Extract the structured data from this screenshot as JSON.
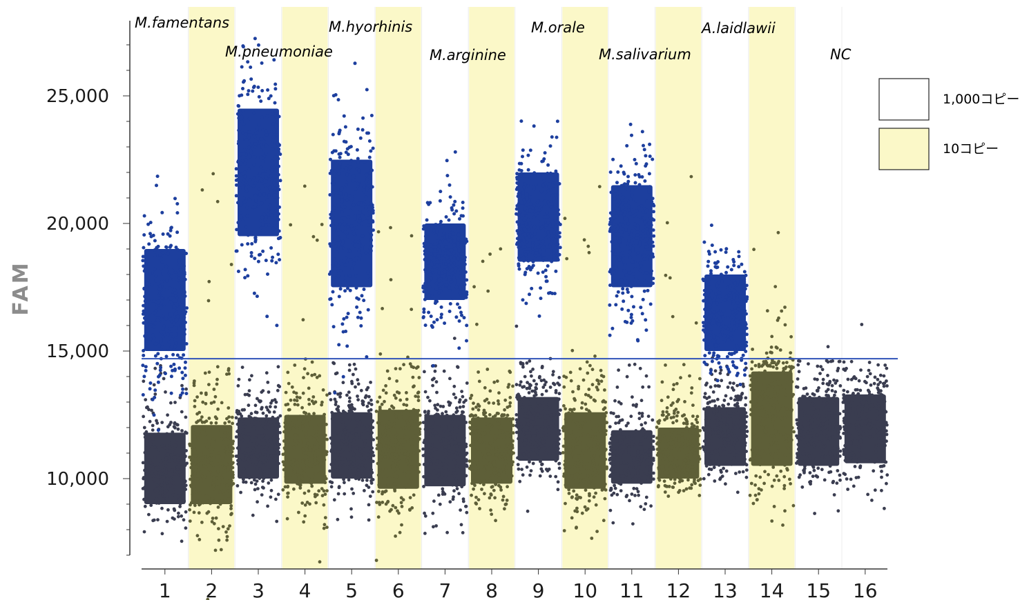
{
  "chart_data": {
    "type": "scatter",
    "ylabel": "FAM",
    "xlabel": "",
    "ylim": [
      7500,
      28000
    ],
    "yticks": [
      10000,
      15000,
      20000,
      25000
    ],
    "ytick_labels": [
      "10,000",
      "15,000",
      "20,000",
      "25,000"
    ],
    "grid": false,
    "threshold": 14700,
    "categories": [
      "1",
      "2",
      "3",
      "4",
      "5",
      "6",
      "7",
      "8",
      "9",
      "10",
      "11",
      "12",
      "13",
      "14",
      "15",
      "16"
    ],
    "wells": [
      {
        "well": "1",
        "concentration": "1,000コピー",
        "positive": [
          15000,
          19000,
          16700
        ],
        "negative": [
          9000,
          11800,
          10400
        ]
      },
      {
        "well": "2",
        "concentration": "10コピー",
        "positive": null,
        "negative": [
          9000,
          12100,
          10500
        ]
      },
      {
        "well": "3",
        "concentration": "1,000コピー",
        "positive": [
          19500,
          24500,
          22000
        ],
        "negative": [
          10000,
          12400,
          11200
        ]
      },
      {
        "well": "4",
        "concentration": "10コピー",
        "positive": null,
        "negative": [
          9800,
          12500,
          11000
        ]
      },
      {
        "well": "5",
        "concentration": "1,000コピー",
        "positive": [
          17500,
          22500,
          20000
        ],
        "negative": [
          10000,
          12600,
          11300
        ]
      },
      {
        "well": "6",
        "concentration": "10コピー",
        "positive": null,
        "negative": [
          9600,
          12700,
          11200
        ]
      },
      {
        "well": "7",
        "concentration": "1,000コピー",
        "positive": [
          17000,
          20000,
          18500
        ],
        "negative": [
          9700,
          12500,
          11000
        ]
      },
      {
        "well": "8",
        "concentration": "10コピー",
        "positive": null,
        "negative": [
          9800,
          12400,
          11000
        ]
      },
      {
        "well": "9",
        "concentration": "1,000コピー",
        "positive": [
          18500,
          22000,
          20200
        ],
        "negative": [
          10700,
          13200,
          12000
        ]
      },
      {
        "well": "10",
        "concentration": "10コピー",
        "positive": null,
        "negative": [
          9600,
          12600,
          11000
        ]
      },
      {
        "well": "11",
        "concentration": "1,000コピー",
        "positive": [
          17500,
          21500,
          19500
        ],
        "negative": [
          9800,
          11900,
          10700
        ]
      },
      {
        "well": "12",
        "concentration": "10コピー",
        "positive": null,
        "negative": [
          10000,
          12000,
          11000
        ]
      },
      {
        "well": "13",
        "concentration": "1,000コピー",
        "positive": [
          15000,
          18000,
          16500
        ],
        "negative": [
          10500,
          12800,
          11800
        ]
      },
      {
        "well": "14",
        "concentration": "10コピー",
        "positive": null,
        "negative": [
          10500,
          14200,
          12300
        ]
      },
      {
        "well": "15",
        "concentration": "",
        "positive": null,
        "negative": [
          10500,
          13200,
          11800
        ]
      },
      {
        "well": "16",
        "concentration": "",
        "positive": null,
        "negative": [
          10600,
          13300,
          12000
        ]
      }
    ],
    "series": [
      {
        "name": "",
        "color": "#1d3f9e"
      },
      {
        "name": "",
        "color": "#3a3d50"
      },
      {
        "name": "",
        "color": "#5e5f38"
      }
    ],
    "annotations": [
      {
        "text": "M.famentans",
        "wells": "1-2"
      },
      {
        "text": "M.pneumoniae",
        "wells": "3-4"
      },
      {
        "text": "M.hyorhinis",
        "wells": "5-6"
      },
      {
        "text": "M.arginine",
        "wells": "7-8"
      },
      {
        "text": "M.orale",
        "wells": "9-10"
      },
      {
        "text": "M.salivarium",
        "wells": "11-12"
      },
      {
        "text": "A.laidlawii",
        "wells": "13-14"
      },
      {
        "text": "NC",
        "wells": "15-16"
      }
    ],
    "legend": {
      "position": "right",
      "items": [
        {
          "label": "1,000コピー",
          "swatch_color": "#ffffff"
        },
        {
          "label": "10コピー",
          "swatch_color": "#fbf8c8"
        }
      ]
    },
    "colors": {
      "highlight": "#fbf8c8",
      "threshold_line": "#2f52b8",
      "axis": "#333333"
    }
  }
}
